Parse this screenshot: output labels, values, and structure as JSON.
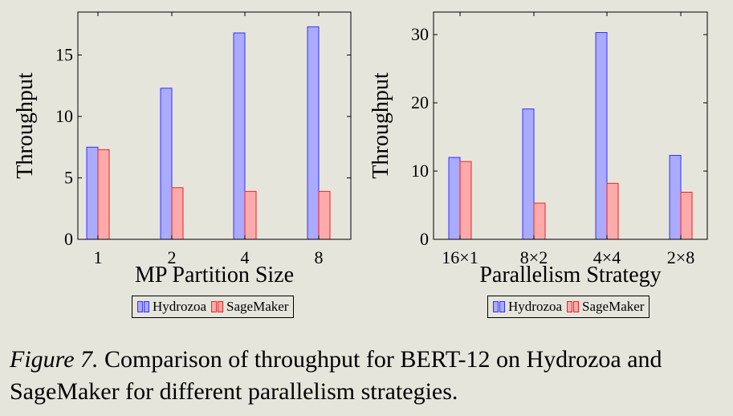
{
  "colors": {
    "hydrozoa_fill": "#aaaaff",
    "hydrozoa_stroke": "#3333ff",
    "sagemaker_fill": "#ffaaaa",
    "sagemaker_stroke": "#ee2222",
    "background": "#e6e5dc"
  },
  "caption": {
    "figure": "Figure 7.",
    "text": " Comparison of throughput for BERT-12 on Hydrozoa and SageMaker for different parallelism strategies."
  },
  "chart_data": [
    {
      "type": "bar",
      "xlabel": "MP Partition Size",
      "ylabel": "Throughput",
      "categories": [
        "1",
        "2",
        "4",
        "8"
      ],
      "yticks": [
        0,
        5,
        10,
        15
      ],
      "ylim": [
        0,
        18.5
      ],
      "legend_position": "bottom",
      "series": [
        {
          "name": "Hydrozoa",
          "values": [
            7.5,
            12.3,
            16.8,
            17.3
          ]
        },
        {
          "name": "SageMaker",
          "values": [
            7.3,
            4.2,
            3.9,
            3.9
          ]
        }
      ]
    },
    {
      "type": "bar",
      "xlabel": "Parallelism Strategy",
      "ylabel": "Throughput",
      "categories": [
        "16×1",
        "8×2",
        "4×4",
        "2×8"
      ],
      "yticks": [
        0,
        10,
        20,
        30
      ],
      "ylim": [
        0,
        33.3
      ],
      "legend_position": "bottom",
      "series": [
        {
          "name": "Hydrozoa",
          "values": [
            12.0,
            19.1,
            30.3,
            12.3
          ]
        },
        {
          "name": "SageMaker",
          "values": [
            11.4,
            5.3,
            8.2,
            6.9
          ]
        }
      ]
    }
  ]
}
